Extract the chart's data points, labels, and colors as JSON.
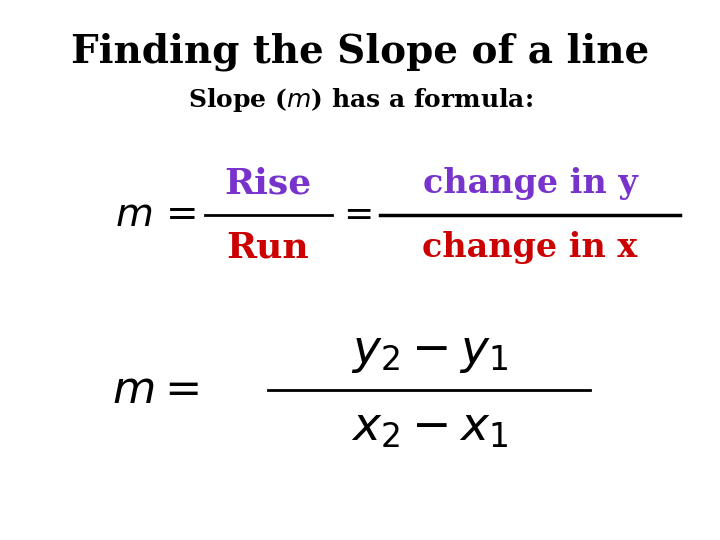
{
  "title": "Finding the Slope of a line",
  "subtitle_pre": "Slope (",
  "subtitle_m": "m",
  "subtitle_post": ") has a formula:",
  "title_fontsize": 28,
  "subtitle_fontsize": 18,
  "background_color": "#ffffff",
  "purple_color": "#7733cc",
  "red_color": "#cc0000",
  "black_color": "#000000",
  "rise_run_fontsize": 26,
  "change_fontsize": 24,
  "math_fontsize": 36
}
